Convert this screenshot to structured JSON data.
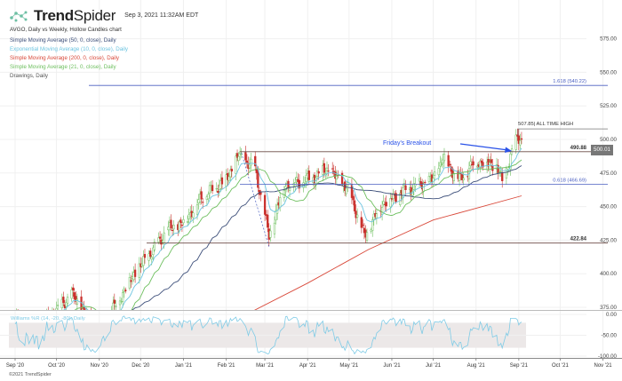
{
  "header": {
    "brand_bold": "Trend",
    "brand_light": "Spider",
    "timestamp": "Sep 3, 2021 11:32AM EDT"
  },
  "legend": [
    {
      "label": "AVGO, Daily vs Weekly, Hollow Candles chart",
      "color": "#333333"
    },
    {
      "label": "Simple Moving Average (50, 0, close), Daily",
      "color": "#3d4f7a"
    },
    {
      "label": "Exponential Moving Average (10, 0, close), Daily",
      "color": "#6cc4e0"
    },
    {
      "label": "Simple Moving Average (200, 0, close), Daily",
      "color": "#d9493a"
    },
    {
      "label": "Simple Moving Average (21, 0, close), Daily",
      "color": "#6dbf5e"
    },
    {
      "label": "Drawings, Daily",
      "color": "#555555"
    }
  ],
  "last_price": "500.01",
  "footer": "©2021 TrendSpider",
  "annotations": {
    "breakout": "Friday's Breakout",
    "ath": "507.85| ALL TIME HIGH",
    "fib_1618": "1.618 (540.22)",
    "fib_0618": "0.618 (466.69)",
    "res": "490.88",
    "sup": "422.84"
  },
  "colors": {
    "up": "#6dbf5e",
    "down": "#c9302c",
    "fib": "#4a5fc1",
    "level": "#6b4a45",
    "arrow": "#2a52e8",
    "wr": "#7fcbe6"
  },
  "chart_data": {
    "type": "candlestick",
    "symbol": "AVGO",
    "ylim": [
      375,
      575
    ],
    "yticks": [
      "575.00",
      "550.00",
      "525.00",
      "500.00",
      "475.00",
      "450.00",
      "425.00",
      "400.00",
      "375.00"
    ],
    "xticks": [
      "Sep '20",
      "Oct '20",
      "Nov '20",
      "Dec '20",
      "Jan '21",
      "Feb '21",
      "Mar '21",
      "Apr '21",
      "May '21",
      "Jun '21",
      "Jul '21",
      "Aug '21",
      "Sep '21",
      "Oct '21",
      "Nov '21"
    ],
    "xtick_dates": [
      "2020-09-01",
      "2020-10-01",
      "2020-11-01",
      "2020-12-01",
      "2021-01-01",
      "2021-02-01",
      "2021-03-01",
      "2021-04-01",
      "2021-05-01",
      "2021-06-01",
      "2021-07-01",
      "2021-08-01",
      "2021-09-01",
      "2021-10-01",
      "2021-11-01"
    ],
    "close_path": [
      [
        "2020-09-01",
        368
      ],
      [
        "2020-09-20",
        362
      ],
      [
        "2020-10-01",
        372
      ],
      [
        "2020-10-12",
        385
      ],
      [
        "2020-10-30",
        355
      ],
      [
        "2020-11-10",
        372
      ],
      [
        "2020-11-25",
        398
      ],
      [
        "2020-12-08",
        415
      ],
      [
        "2020-12-20",
        432
      ],
      [
        "2021-01-01",
        438
      ],
      [
        "2021-01-15",
        458
      ],
      [
        "2021-02-01",
        470
      ],
      [
        "2021-02-10",
        488
      ],
      [
        "2021-02-22",
        478
      ],
      [
        "2021-03-04",
        428
      ],
      [
        "2021-03-15",
        466
      ],
      [
        "2021-04-01",
        470
      ],
      [
        "2021-04-15",
        478
      ],
      [
        "2021-05-01",
        462
      ],
      [
        "2021-05-12",
        428
      ],
      [
        "2021-05-25",
        452
      ],
      [
        "2021-06-10",
        462
      ],
      [
        "2021-07-01",
        470
      ],
      [
        "2021-07-08",
        486
      ],
      [
        "2021-07-20",
        470
      ],
      [
        "2021-08-01",
        484
      ],
      [
        "2021-08-16",
        480
      ],
      [
        "2021-08-20",
        468
      ],
      [
        "2021-08-27",
        490
      ],
      [
        "2021-08-31",
        502
      ],
      [
        "2021-09-03",
        500
      ]
    ],
    "sma200_path": [
      [
        "2021-02-20",
        372
      ],
      [
        "2021-04-01",
        393
      ],
      [
        "2021-05-15",
        418
      ],
      [
        "2021-07-01",
        440
      ],
      [
        "2021-09-03",
        458
      ]
    ],
    "levels": [
      {
        "name": "fib_1618",
        "value": 540.22
      },
      {
        "name": "ath",
        "value": 507.85
      },
      {
        "name": "res",
        "value": 490.88
      },
      {
        "name": "fib_0618",
        "value": 466.69
      },
      {
        "name": "sup",
        "value": 422.84
      }
    ],
    "williams": {
      "label": "Williams %R (14, -20, -80), Daily",
      "yticks": [
        "0.00",
        "-50.00",
        "-100.00"
      ],
      "ylim": [
        -100,
        0
      ],
      "band": [
        -80,
        -20
      ]
    }
  }
}
